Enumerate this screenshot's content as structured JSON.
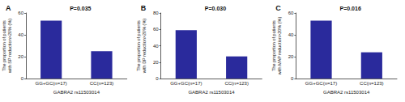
{
  "chart_data": [
    {
      "type": "bar",
      "annotation": "A",
      "title": "P=0.035",
      "categories": [
        "GG+GC(n=17)",
        "CC(n=123)"
      ],
      "values": [
        53,
        25
      ],
      "color": "#2a2a9c",
      "xlabel": "GABRA2 rs11503014",
      "ylabel": "The proportion of patients with SP reduction>20% (%)",
      "ylim": [
        0,
        60
      ],
      "yticks": [
        0,
        20,
        40,
        60
      ],
      "grid": false
    },
    {
      "type": "bar",
      "annotation": "B",
      "title": "P=0.030",
      "categories": [
        "GG+GC(n=17)",
        "CC(n=123)"
      ],
      "values": [
        59,
        27
      ],
      "color": "#2a2a9c",
      "xlabel": "GABRA2 rs11503014",
      "ylabel": "The proportion of patients with DP reduction>20% (%)",
      "ylim": [
        0,
        80
      ],
      "yticks": [
        0,
        20,
        40,
        60,
        80
      ],
      "grid": false
    },
    {
      "type": "bar",
      "annotation": "C",
      "title": "P=0.016",
      "categories": [
        "GG+GC(n=17)",
        "CC(n=123)"
      ],
      "values": [
        53,
        24
      ],
      "color": "#2a2a9c",
      "xlabel": "GABRA2 rs11503014",
      "ylabel": "The proportion of patients with MAP reduction>20% (%)",
      "ylim": [
        0,
        60
      ],
      "yticks": [
        0,
        20,
        40,
        60
      ],
      "grid": false
    }
  ]
}
